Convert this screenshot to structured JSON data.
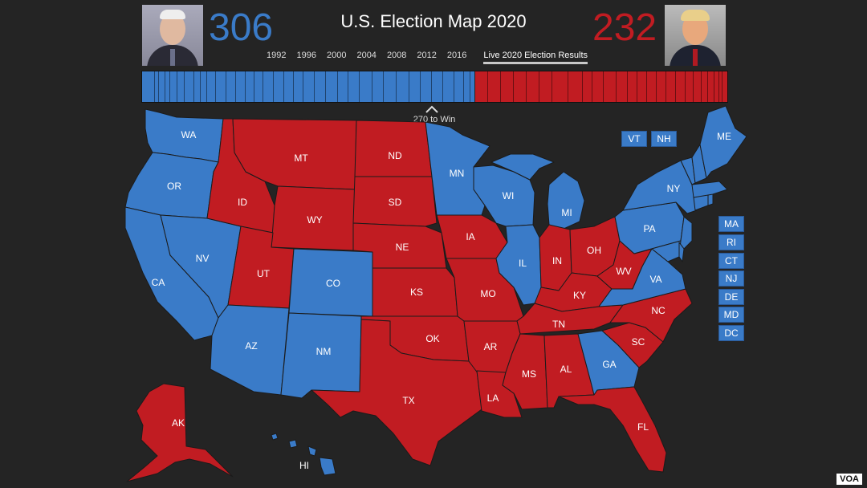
{
  "title": "U.S. Election Map 2020",
  "dem_votes": "306",
  "rep_votes": "232",
  "years": [
    "1992",
    "1996",
    "2000",
    "2004",
    "2008",
    "2012",
    "2016"
  ],
  "live_label": "Live 2020 Election Results",
  "to_win_label": "270 to Win",
  "hi_label": "HI",
  "source": "VOA",
  "colors": {
    "dem": "#3a7bc8",
    "rep": "#c11c22",
    "background": "#242424"
  },
  "states": {
    "WA": "dem",
    "OR": "dem",
    "CA": "dem",
    "NV": "dem",
    "AZ": "dem",
    "CO": "dem",
    "NM": "dem",
    "MN": "dem",
    "WI": "dem",
    "MI": "dem",
    "IL": "dem",
    "PA": "dem",
    "VA": "dem",
    "GA": "dem",
    "NY": "dem",
    "ME": "dem",
    "VT": "dem",
    "NH": "dem",
    "MA": "dem",
    "RI": "dem",
    "CT": "dem",
    "NJ": "dem",
    "DE": "dem",
    "MD": "dem",
    "DC": "dem",
    "HI": "dem",
    "MT": "rep",
    "ID": "rep",
    "WY": "rep",
    "UT": "rep",
    "ND": "rep",
    "SD": "rep",
    "NE": "rep",
    "KS": "rep",
    "OK": "rep",
    "TX": "rep",
    "IA": "rep",
    "MO": "rep",
    "AR": "rep",
    "LA": "rep",
    "MS": "rep",
    "AL": "rep",
    "TN": "rep",
    "KY": "rep",
    "IN": "rep",
    "OH": "rep",
    "WV": "rep",
    "NC": "rep",
    "SC": "rep",
    "FL": "rep",
    "AK": "rep"
  },
  "northeast_boxes": [
    "VT",
    "NH"
  ],
  "side_boxes": [
    "MA",
    "RI",
    "CT",
    "NJ",
    "DE",
    "MD",
    "DC"
  ]
}
